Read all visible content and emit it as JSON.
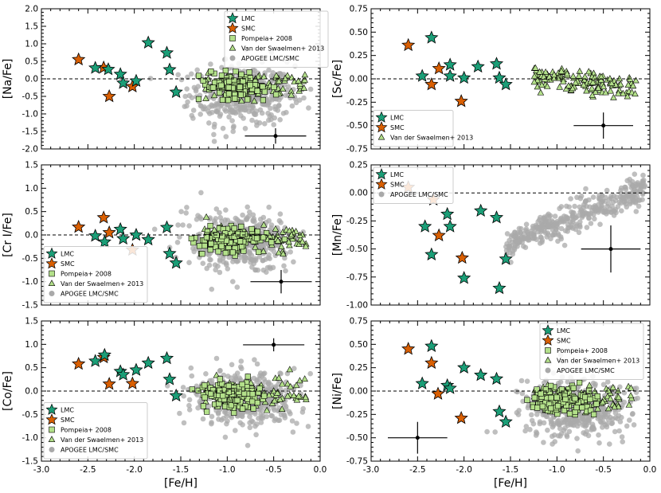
{
  "figure": {
    "x_label": "[Fe/H]",
    "x_ticks": [
      "-3.0",
      "-2.5",
      "-2.0",
      "-1.5",
      "-1.0",
      "-0.5",
      "0.0"
    ],
    "x_range": [
      -3.0,
      0.0
    ],
    "colors": {
      "lmc": "#1b9e77",
      "smc": "#d95f02",
      "pompeia": "#b3e08a",
      "vds": "#b3e08a",
      "apogee": "#a9a9a9",
      "dashed": "#000000"
    }
  },
  "chart_data": [
    {
      "id": "na",
      "type": "scatter",
      "ylabel": "[Na/Fe]",
      "ylim": [
        -2.0,
        2.0
      ],
      "yticks": [
        "-2.0",
        "-1.5",
        "-1.0",
        "-0.5",
        "0.0",
        "0.5",
        "1.0",
        "1.5",
        "2.0"
      ],
      "legend": [
        "LMC",
        "SMC",
        "Pompeia+ 2008",
        "Van der Swaelmen+ 2013",
        "APOGEE LMC/SMC"
      ],
      "legend_position": "top-center",
      "lmc": [
        [
          -2.42,
          0.31
        ],
        [
          -2.28,
          0.27
        ],
        [
          -2.15,
          0.13
        ],
        [
          -2.12,
          -0.12
        ],
        [
          -1.98,
          -0.06
        ],
        [
          -1.85,
          1.03
        ],
        [
          -1.65,
          0.74
        ],
        [
          -1.62,
          0.26
        ],
        [
          -1.55,
          -0.38
        ]
      ],
      "smc": [
        [
          -2.6,
          0.55
        ],
        [
          -2.33,
          0.32
        ],
        [
          -2.27,
          -0.5
        ],
        [
          -2.02,
          -0.22
        ]
      ],
      "error_bar": {
        "x": -0.48,
        "y": -1.63,
        "dx": 0.33,
        "dy": 0.22
      },
      "samples": {
        "pompeia": 130,
        "vds": 80,
        "apogee": 420
      },
      "apogee_center": [
        -0.85,
        -0.45
      ]
    },
    {
      "id": "sc",
      "type": "scatter",
      "ylabel": "[Sc/Fe]",
      "ylim": [
        -0.75,
        0.75
      ],
      "yticks": [
        "-0.75",
        "-0.50",
        "-0.25",
        "0.00",
        "0.25",
        "0.50",
        "0.75"
      ],
      "legend": [
        "LMC",
        "SMC",
        "Van der Swaelmen+ 2013"
      ],
      "legend_position": "bottom-left",
      "lmc": [
        [
          -2.45,
          0.03
        ],
        [
          -2.35,
          0.44
        ],
        [
          -2.15,
          0.15
        ],
        [
          -2.15,
          0.03
        ],
        [
          -2.0,
          0.01
        ],
        [
          -1.85,
          0.13
        ],
        [
          -1.65,
          0.16
        ],
        [
          -1.62,
          0.01
        ],
        [
          -1.55,
          -0.06
        ]
      ],
      "smc": [
        [
          -2.6,
          0.36
        ],
        [
          -2.35,
          -0.06
        ],
        [
          -2.27,
          0.11
        ],
        [
          -2.03,
          -0.24
        ]
      ],
      "error_bar": {
        "x": -0.5,
        "y": -0.5,
        "dx": 0.32,
        "dy": 0.14
      },
      "samples": {
        "pompeia": 0,
        "vds": 140,
        "apogee": 0
      },
      "apogee_center": [
        -0.7,
        0.0
      ]
    },
    {
      "id": "cr",
      "type": "scatter",
      "ylabel": "[Cr I/Fe]",
      "ylim": [
        -1.5,
        1.5
      ],
      "yticks": [
        "-1.5",
        "-1.0",
        "-0.5",
        "0.0",
        "0.5",
        "1.0",
        "1.5"
      ],
      "legend": [
        "LMC",
        "SMC",
        "Pompeia+ 2008",
        "Van der Swaelmen+ 2013",
        "APOGEE LMC/SMC"
      ],
      "legend_position": "bottom-left",
      "lmc": [
        [
          -2.42,
          -0.02
        ],
        [
          -2.32,
          -0.15
        ],
        [
          -2.15,
          0.12
        ],
        [
          -2.12,
          -0.08
        ],
        [
          -1.98,
          0.0
        ],
        [
          -1.85,
          -0.1
        ],
        [
          -1.65,
          0.16
        ],
        [
          -1.62,
          -0.4
        ],
        [
          -1.55,
          -0.6
        ]
      ],
      "smc": [
        [
          -2.6,
          0.17
        ],
        [
          -2.33,
          0.37
        ],
        [
          -2.27,
          0.05
        ],
        [
          -2.02,
          -0.32
        ]
      ],
      "error_bar": {
        "x": -0.42,
        "y": -1.0,
        "dx": 0.33,
        "dy": 0.25
      },
      "samples": {
        "pompeia": 130,
        "vds": 80,
        "apogee": 420
      },
      "apogee_center": [
        -0.85,
        -0.15
      ]
    },
    {
      "id": "mn",
      "type": "scatter",
      "ylabel": "[Mn/Fe]",
      "ylim": [
        -1.0,
        0.25
      ],
      "yticks": [
        "-1.00",
        "-0.75",
        "-0.50",
        "-0.25",
        "0.00",
        "0.25"
      ],
      "legend": [
        "LMC",
        "SMC",
        "APOGEE LMC/SMC"
      ],
      "legend_position": "top-left",
      "lmc": [
        [
          -2.42,
          -0.3
        ],
        [
          -2.35,
          -0.55
        ],
        [
          -2.18,
          -0.19
        ],
        [
          -2.15,
          -0.3
        ],
        [
          -2.0,
          -0.76
        ],
        [
          -1.82,
          -0.16
        ],
        [
          -1.65,
          -0.22
        ],
        [
          -1.62,
          -0.85
        ],
        [
          -1.55,
          -0.59
        ]
      ],
      "smc": [
        [
          -2.6,
          0.05
        ],
        [
          -2.33,
          -0.06
        ],
        [
          -2.27,
          -0.38
        ],
        [
          -2.02,
          -0.58
        ]
      ],
      "error_bar": {
        "x": -0.42,
        "y": -0.5,
        "dx": 0.32,
        "dy": 0.21
      },
      "samples": {
        "pompeia": 0,
        "vds": 0,
        "apogee": 380
      },
      "apogee_center": [
        -0.7,
        -0.2
      ]
    },
    {
      "id": "co",
      "type": "scatter",
      "ylabel": "[Co/Fe]",
      "ylim": [
        -1.5,
        1.5
      ],
      "yticks": [
        "-1.5",
        "-1.0",
        "-0.5",
        "0.0",
        "0.5",
        "1.0",
        "1.5"
      ],
      "legend": [
        "LMC",
        "SMC",
        "Pompeia+ 2008",
        "Van der Swaelmen+ 2013",
        "APOGEE LMC/SMC"
      ],
      "legend_position": "bottom-left",
      "lmc": [
        [
          -2.42,
          0.64
        ],
        [
          -2.32,
          0.77
        ],
        [
          -2.15,
          0.42
        ],
        [
          -2.12,
          0.35
        ],
        [
          -1.98,
          0.45
        ],
        [
          -1.85,
          0.6
        ],
        [
          -1.65,
          0.7
        ],
        [
          -1.62,
          0.25
        ],
        [
          -1.55,
          -0.1
        ]
      ],
      "smc": [
        [
          -2.6,
          0.58
        ],
        [
          -2.33,
          0.72
        ],
        [
          -2.27,
          0.15
        ],
        [
          -2.02,
          0.16
        ]
      ],
      "error_bar": {
        "x": -0.5,
        "y": 0.99,
        "dx": 0.33,
        "dy": 0.14
      },
      "samples": {
        "pompeia": 130,
        "vds": 80,
        "apogee": 420
      },
      "apogee_center": [
        -0.8,
        -0.15
      ]
    },
    {
      "id": "ni",
      "type": "scatter",
      "ylabel": "[Ni/Fe]",
      "ylim": [
        -0.75,
        0.75
      ],
      "yticks": [
        "-0.75",
        "-0.50",
        "-0.25",
        "0.00",
        "0.25",
        "0.50",
        "0.75"
      ],
      "legend": [
        "LMC",
        "SMC",
        "Pompeia+ 2008",
        "Van der Swaelmen+ 2013",
        "APOGEE LMC/SMC"
      ],
      "legend_position": "top-right",
      "lmc": [
        [
          -2.45,
          0.08
        ],
        [
          -2.35,
          0.48
        ],
        [
          -2.18,
          0.06
        ],
        [
          -2.15,
          0.03
        ],
        [
          -2.0,
          0.25
        ],
        [
          -1.82,
          0.17
        ],
        [
          -1.65,
          0.13
        ],
        [
          -1.62,
          -0.22
        ],
        [
          -1.55,
          -0.33
        ]
      ],
      "smc": [
        [
          -2.6,
          0.45
        ],
        [
          -2.35,
          0.3
        ],
        [
          -2.28,
          -0.03
        ],
        [
          -2.03,
          -0.29
        ]
      ],
      "error_bar": {
        "x": -2.5,
        "y": -0.5,
        "dx": 0.32,
        "dy": 0.17
      },
      "samples": {
        "pompeia": 130,
        "vds": 80,
        "apogee": 420
      },
      "apogee_center": [
        -0.8,
        -0.18
      ]
    }
  ]
}
